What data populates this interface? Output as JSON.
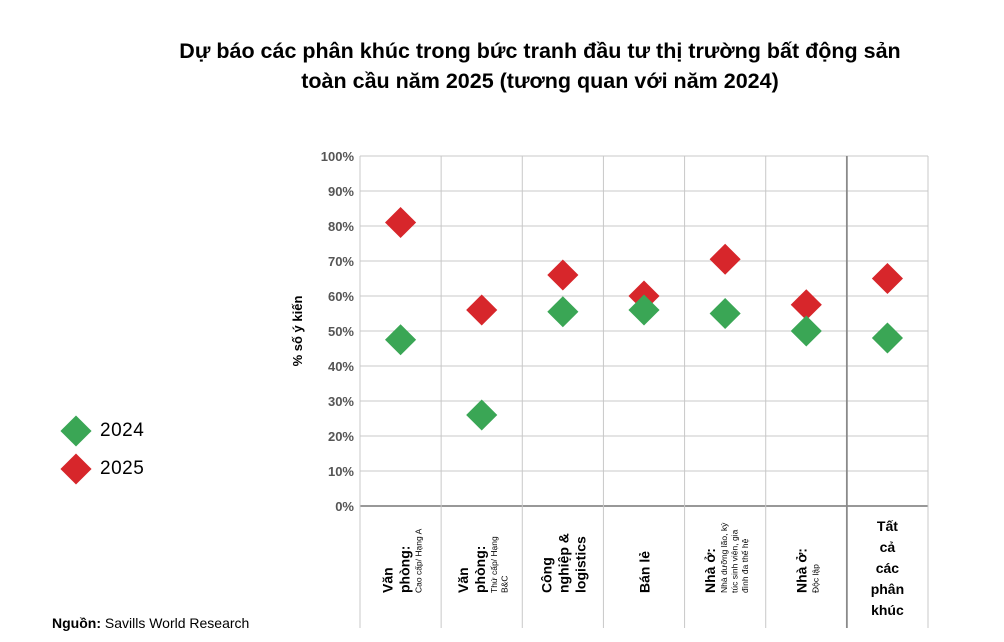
{
  "title_line1": "Dự báo các phân khúc trong bức tranh đầu tư thị trường bất động sản",
  "title_line2": "toàn cầu năm 2025 (tương quan với năm 2024)",
  "source_label": "Nguồn:",
  "source_text": "Savills World Research",
  "colors": {
    "series_2024": "#3aa655",
    "series_2025": "#d7262b",
    "grid": "#c8c8c8",
    "axis_text": "#555555"
  },
  "chart_data": {
    "type": "scatter",
    "ylabel": "% số ý kiến",
    "ylim": [
      0,
      100
    ],
    "yticks": [
      "0%",
      "10%",
      "20%",
      "30%",
      "40%",
      "50%",
      "60%",
      "70%",
      "80%",
      "90%",
      "100%"
    ],
    "grid": true,
    "legend_position": "left",
    "categories": [
      {
        "bold": [
          "Văn",
          "phòng:"
        ],
        "small": [
          "Cao cấp/ Hạng A"
        ]
      },
      {
        "bold": [
          "Văn",
          "phòng:"
        ],
        "small": [
          "Thứ cấp/ Hạng",
          "B&C"
        ]
      },
      {
        "bold": [
          "Công",
          "nghiệp &",
          "logistics"
        ],
        "small": []
      },
      {
        "bold": [
          "Bán lẻ"
        ],
        "small": []
      },
      {
        "bold": [
          "Nhà ở:"
        ],
        "small": [
          "Nhà dưỡng lão, ký",
          "túc sinh viên, gia",
          "đình đa thế hệ"
        ]
      },
      {
        "bold": [
          "Nhà ở:"
        ],
        "small": [
          "Độc lập"
        ]
      },
      {
        "bold": [
          "Tất",
          "cả",
          "các",
          "phân",
          "khúc"
        ],
        "small": [],
        "horizontal": true
      }
    ],
    "series": [
      {
        "name": "2024",
        "color": "#3aa655",
        "values": [
          47.5,
          26,
          55.5,
          56,
          55,
          50,
          48
        ]
      },
      {
        "name": "2025",
        "color": "#d7262b",
        "values": [
          81,
          56,
          66,
          60,
          70.5,
          57.5,
          65
        ]
      }
    ]
  }
}
